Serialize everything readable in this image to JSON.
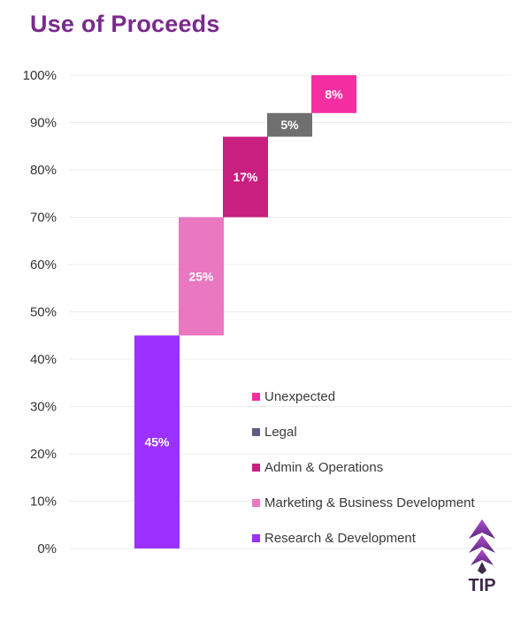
{
  "title": "Use of Proceeds",
  "brand": {
    "logo_text": "TIP",
    "color": "#3e2a4a",
    "accent": "#8e3fd0"
  },
  "chart_data": {
    "type": "waterfall",
    "title": "Use of Proceeds",
    "ylim": [
      0,
      100
    ],
    "yticks": [
      "0%",
      "10%",
      "20%",
      "30%",
      "40%",
      "50%",
      "60%",
      "70%",
      "80%",
      "90%",
      "100%"
    ],
    "grid": true,
    "legend_position": "right",
    "steps": [
      {
        "name": "Research & Development",
        "value": 45,
        "label": "45%",
        "color": "#9b30ff"
      },
      {
        "name": "Marketing & Business Development",
        "value": 25,
        "label": "25%",
        "color": "#ea78c1"
      },
      {
        "name": "Admin & Operations",
        "value": 17,
        "label": "17%",
        "color": "#c81f80"
      },
      {
        "name": "Legal",
        "value": 5,
        "label": "5%",
        "color": "#6f6f6f"
      },
      {
        "name": "Unexpected",
        "value": 8,
        "label": "8%",
        "color": "#f52fa2"
      }
    ],
    "legend": [
      {
        "label": "Unexpected",
        "color": "#f52fa2"
      },
      {
        "label": "Legal",
        "color": "#5a5f82"
      },
      {
        "label": "Admin & Operations",
        "color": "#c81f80"
      },
      {
        "label": "Marketing & Business Development",
        "color": "#ea78c1"
      },
      {
        "label": "Research & Development",
        "color": "#9b30ff"
      }
    ]
  }
}
